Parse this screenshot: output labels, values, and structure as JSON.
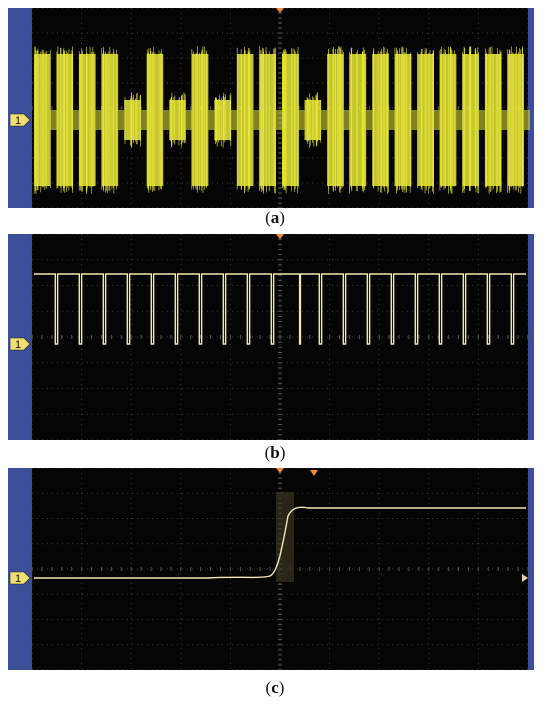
{
  "figure": {
    "panels": [
      {
        "id": "a",
        "caption_open": "(",
        "caption_letter": "a",
        "caption_close": ")",
        "channel_label": "1",
        "trace_color": "#e8e83a",
        "signal": "amplitude-modulated burst train",
        "burst_pattern": [
          1,
          1,
          1,
          1,
          0,
          1,
          0,
          1,
          0,
          1,
          1,
          1,
          0,
          1,
          1,
          1,
          1,
          1,
          1,
          1,
          1,
          1
        ]
      },
      {
        "id": "b",
        "caption_open": "(",
        "caption_letter": "b",
        "caption_close": ")",
        "channel_label": "1",
        "trace_color": "#f2e8b0",
        "signal": "rectangular pulse train",
        "pulse_pattern": [
          1,
          1,
          1,
          1,
          1,
          1,
          1,
          1,
          1,
          1,
          0,
          1,
          1,
          1,
          1,
          1,
          1,
          1,
          1,
          1
        ]
      },
      {
        "id": "c",
        "caption_open": "(",
        "caption_letter": "c",
        "caption_close": ")",
        "channel_label": "1",
        "trace_color": "#f2e8b0",
        "signal": "single rising step edge"
      }
    ],
    "colors": {
      "screen": "#050505",
      "grid": "#3a3a3a",
      "side_bar": "#3d4f9a",
      "marker": "#f0e070",
      "trigger_marker": "#f08a3a"
    }
  }
}
